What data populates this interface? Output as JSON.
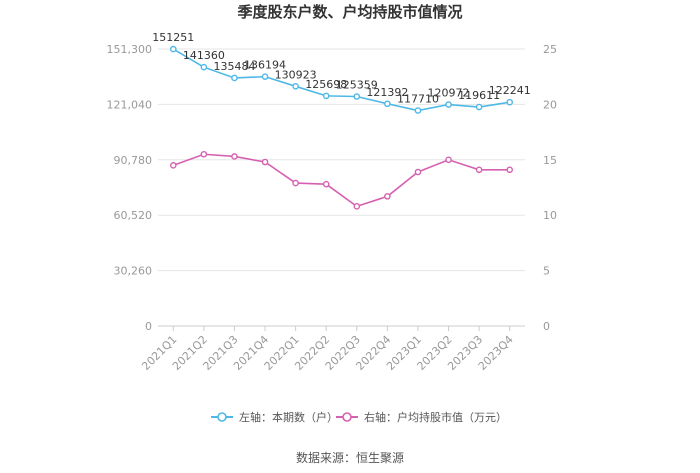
{
  "chart_data": {
    "type": "line",
    "title": "季度股东户数、户均持股市值情况",
    "categories": [
      "2021Q1",
      "2021Q2",
      "2021Q3",
      "2021Q4",
      "2022Q1",
      "2022Q2",
      "2022Q3",
      "2022Q4",
      "2023Q1",
      "2023Q2",
      "2023Q3",
      "2023Q4"
    ],
    "left_axis": {
      "ylim": [
        0,
        151300
      ],
      "ticks": [
        0,
        30260,
        60520,
        90780,
        121040,
        151300
      ],
      "tick_labels": [
        "0",
        "30,260",
        "60,520",
        "90,780",
        "121,040",
        "151,300"
      ]
    },
    "right_axis": {
      "ylim": [
        0,
        25
      ],
      "ticks": [
        0,
        5,
        10,
        15,
        20,
        25
      ],
      "tick_labels": [
        "0",
        "5",
        "10",
        "15",
        "20",
        "25"
      ]
    },
    "series": [
      {
        "name": "左轴：本期数（户）",
        "axis": "left",
        "color": "#4db8e8",
        "values": [
          151251,
          141360,
          135484,
          136194,
          130923,
          125698,
          125359,
          121392,
          117710,
          120972,
          119611,
          122241
        ],
        "labels": [
          "151251",
          "141360",
          "135484",
          "136194",
          "130923",
          "125698",
          "125359",
          "121392",
          "117710",
          "120972",
          "119611",
          "122241"
        ]
      },
      {
        "name": "右轴：户均持股市值（万元）",
        "axis": "right",
        "color": "#d660b0",
        "values": [
          14.5,
          15.5,
          15.3,
          14.8,
          12.9,
          12.8,
          10.8,
          11.7,
          13.9,
          15.0,
          14.1,
          14.1
        ]
      }
    ],
    "legend_position": "bottom",
    "grid": true
  },
  "source": "数据来源：恒生聚源"
}
